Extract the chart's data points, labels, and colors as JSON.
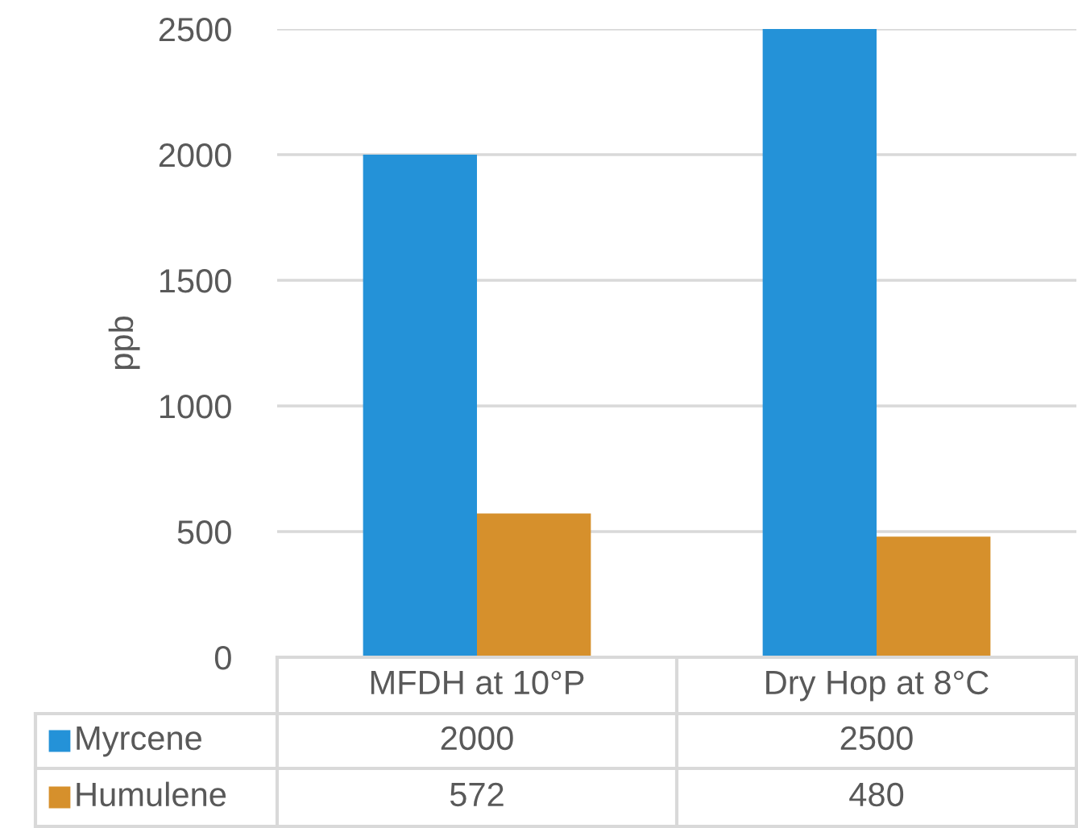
{
  "chart_data": {
    "type": "bar",
    "ylabel": "ppb",
    "categories": [
      "MFDH at 10°P",
      "Dry Hop at 8°C"
    ],
    "series": [
      {
        "name": "Myrcene",
        "color": "#2492d8",
        "values": [
          2000,
          2500
        ]
      },
      {
        "name": "Humulene",
        "color": "#d6902c",
        "values": [
          572,
          480
        ]
      }
    ],
    "ylim": [
      0,
      2500
    ],
    "yticks": [
      0,
      500,
      1000,
      1500,
      2000,
      2500
    ],
    "grid": "y",
    "legend": "bottom",
    "data_labels": true
  }
}
